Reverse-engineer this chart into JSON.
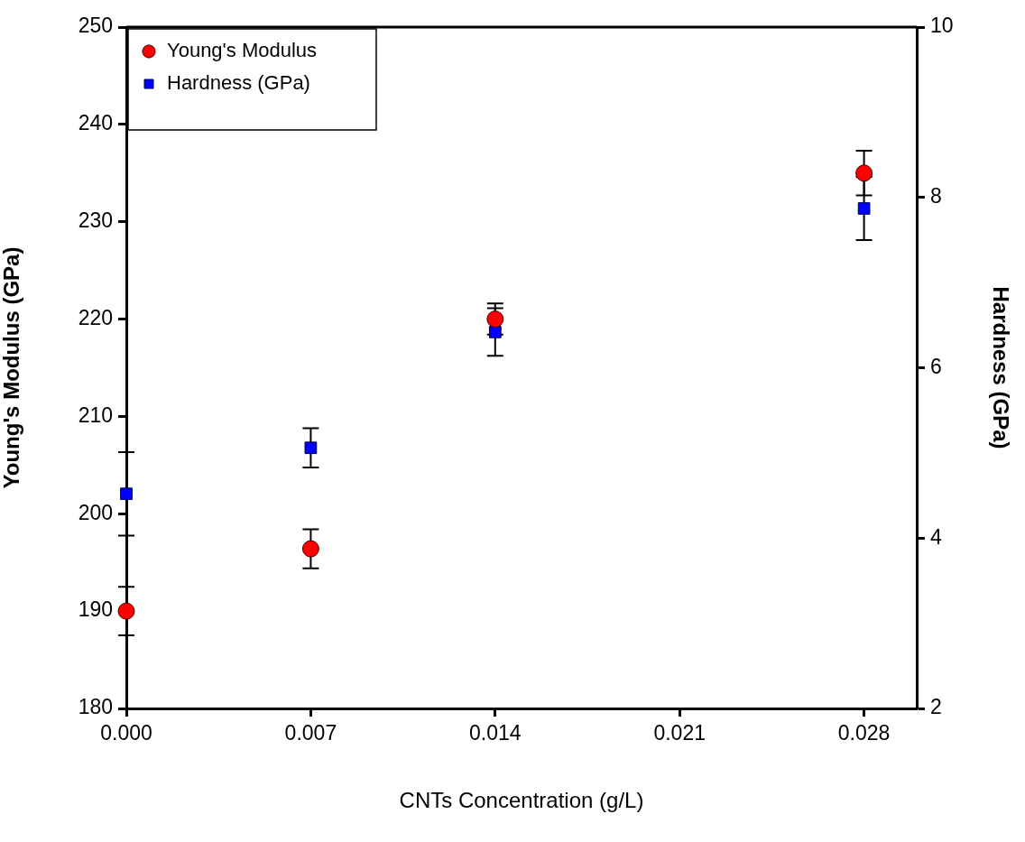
{
  "chart_data": {
    "type": "scatter",
    "xlabel": "CNTs Concentration (g/L)",
    "ylabel": "Young's Modulus (GPa)",
    "y2label": "Hardness (GPa)",
    "x": [
      0,
      0.007,
      0.014,
      0.028
    ],
    "series": [
      {
        "name": "Young's Modulus",
        "color": "#ff0000",
        "marker": "circle",
        "values": [
          190,
          196.4,
          220,
          235
        ],
        "errors": [
          2.5,
          2,
          1.6,
          2.3
        ]
      },
      {
        "name": "Hardness (GPa)",
        "color": "#0000ff",
        "marker": "square",
        "axis": "y2",
        "values": [
          4.52,
          5.06,
          6.42,
          7.87
        ],
        "errors": [
          0.49,
          0.23,
          0.28,
          0.37
        ]
      }
    ],
    "xlim": [
      0,
      0.03
    ],
    "xticks": [
      {
        "value": 0,
        "label": "0.000"
      },
      0.007,
      0.014,
      0.021,
      0.028
    ],
    "ylim": [
      180,
      250
    ],
    "yticks": [
      180,
      190,
      200,
      210,
      220,
      230,
      240,
      250
    ],
    "y2lim": [
      2,
      10
    ],
    "y2ticks": [
      2,
      4,
      6,
      8,
      10
    ],
    "grid": false,
    "legend": "top left"
  }
}
